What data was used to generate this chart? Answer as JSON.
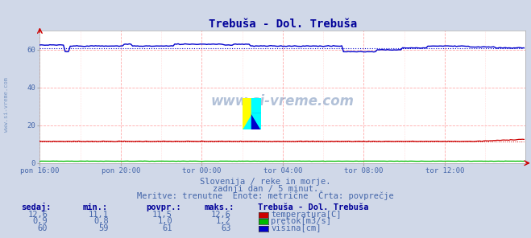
{
  "title": "Trebuša - Dol. Trebuša",
  "bg_color": "#d0d8e8",
  "plot_bg_color": "#ffffff",
  "grid_color": "#ffaaaa",
  "grid_color_minor": "#ffdddd",
  "x_labels": [
    "pon 16:00",
    "pon 20:00",
    "tor 00:00",
    "tor 04:00",
    "tor 08:00",
    "tor 12:00"
  ],
  "x_ticks": [
    0,
    48,
    96,
    144,
    192,
    240
  ],
  "x_max": 288,
  "y_min": 0,
  "y_max": 70,
  "y_ticks": [
    0,
    20,
    40,
    60
  ],
  "temp_value": 11.5,
  "temp_color": "#cc0000",
  "pretok_value": 1.0,
  "pretok_color": "#00bb00",
  "visina_value": 61.0,
  "visina_color": "#0000cc",
  "watermark": "www.si-vreme.com",
  "text1": "Slovenija / reke in morje.",
  "text2": "zadnji dan / 5 minut.",
  "text3": "Meritve: trenutne  Enote: metrične  Črta: povprečje",
  "table_header": "Trebuša - Dol. Trebuša",
  "col_headers": [
    "sedaj:",
    "min.:",
    "povpr.:",
    "maks.:"
  ],
  "row1": [
    "12,6",
    "11,1",
    "11,5",
    "12,6",
    "temperatura[C]"
  ],
  "row2": [
    "0,9",
    "0,8",
    "1,0",
    "1,2",
    "pretok[m3/s]"
  ],
  "row3": [
    "60",
    "59",
    "61",
    "63",
    "višina[cm]"
  ],
  "title_color": "#000099",
  "text_color": "#4466aa",
  "table_num_color": "#4466aa",
  "table_head_color": "#000099"
}
